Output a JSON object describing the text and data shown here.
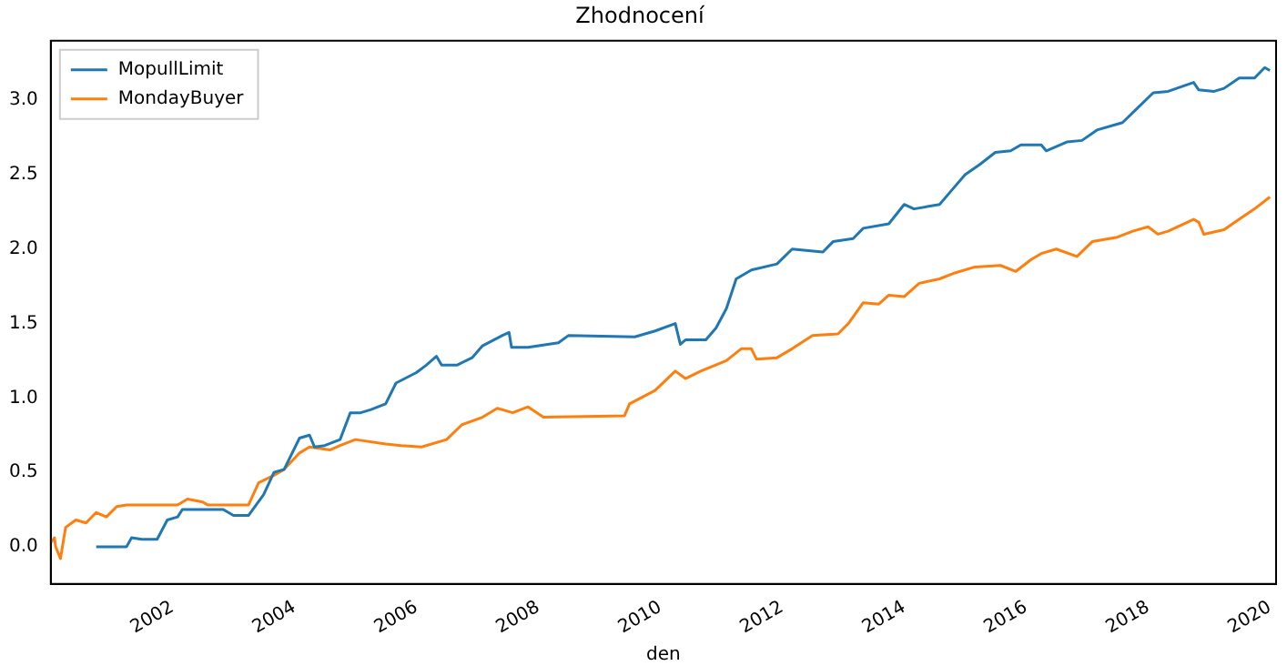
{
  "chart_data": {
    "type": "line",
    "title": "Zhodnocení",
    "xlabel": "den",
    "xlim": [
      "2000-01-03",
      "2020-02-07"
    ],
    "xticks": [
      {
        "value": "2002",
        "label": "2002"
      },
      {
        "value": "2004",
        "label": "2004"
      },
      {
        "value": "2006",
        "label": "2006"
      },
      {
        "value": "2008",
        "label": "2008"
      },
      {
        "value": "2010",
        "label": "2010"
      },
      {
        "value": "2012",
        "label": "2012"
      },
      {
        "value": "2014",
        "label": "2014"
      },
      {
        "value": "2016",
        "label": "2016"
      },
      {
        "value": "2018",
        "label": "2018"
      },
      {
        "value": "2020",
        "label": "2020"
      }
    ],
    "ylim": [
      -0.25,
      3.4
    ],
    "yticks": [
      {
        "value": 0,
        "label": "0.0"
      },
      {
        "value": 0.5,
        "label": "0.5"
      },
      {
        "value": 1,
        "label": "1.0"
      },
      {
        "value": 1.5,
        "label": "1.5"
      },
      {
        "value": 2,
        "label": "2.0"
      },
      {
        "value": 2.5,
        "label": "2.5"
      },
      {
        "value": 3,
        "label": "3.0"
      }
    ],
    "grid": false,
    "legend": "top left",
    "marker": "none",
    "line_style": "solid",
    "series": [
      {
        "name": "MopullLimit",
        "color": "#1f77b4",
        "x": [
          "2000-10",
          "2001-04",
          "2001-05",
          "2001-07",
          "2001-10",
          "2001-12",
          "2002-02",
          "2002-03",
          "2002-11",
          "2003-01",
          "2003-04",
          "2003-07",
          "2003-09",
          "2003-11",
          "2004-02",
          "2004-04",
          "2004-05",
          "2004-07",
          "2004-10",
          "2004-12",
          "2005-02",
          "2005-04",
          "2005-07",
          "2005-09",
          "2006-01",
          "2006-03",
          "2006-05",
          "2006-06",
          "2006-09",
          "2006-12",
          "2007-02",
          "2007-06",
          "2007-07-10",
          "2007-07-25",
          "2007-11",
          "2008-05",
          "2008-07",
          "2009-08",
          "2009-12",
          "2010-04",
          "2010-05",
          "2010-06",
          "2010-10",
          "2010-12",
          "2011-02",
          "2011-04",
          "2011-07",
          "2011-12",
          "2012-03",
          "2012-09",
          "2012-11",
          "2013-03",
          "2013-05",
          "2013-10",
          "2014-01",
          "2014-03",
          "2014-08",
          "2014-10",
          "2015-01",
          "2015-04",
          "2015-07",
          "2015-10",
          "2015-12",
          "2016-04",
          "2016-05",
          "2016-09",
          "2016-12",
          "2017-03",
          "2017-08",
          "2017-11",
          "2018-02",
          "2018-05",
          "2018-10",
          "2018-11",
          "2019-02",
          "2019-04",
          "2019-07",
          "2019-10",
          "2019-12",
          "2020-01"
        ],
        "values": [
          0,
          0,
          0.06,
          0.05,
          0.05,
          0.18,
          0.2,
          0.25,
          0.25,
          0.21,
          0.21,
          0.35,
          0.5,
          0.52,
          0.73,
          0.75,
          0.67,
          0.68,
          0.72,
          0.9,
          0.9,
          0.92,
          0.96,
          1.1,
          1.17,
          1.22,
          1.28,
          1.22,
          1.22,
          1.27,
          1.35,
          1.42,
          1.44,
          1.34,
          1.34,
          1.37,
          1.42,
          1.41,
          1.45,
          1.5,
          1.36,
          1.39,
          1.39,
          1.47,
          1.6,
          1.8,
          1.86,
          1.9,
          2.0,
          1.98,
          2.05,
          2.07,
          2.14,
          2.17,
          2.3,
          2.27,
          2.3,
          2.38,
          2.5,
          2.57,
          2.65,
          2.66,
          2.7,
          2.7,
          2.66,
          2.72,
          2.73,
          2.8,
          2.85,
          2.95,
          3.05,
          3.06,
          3.12,
          3.07,
          3.06,
          3.08,
          3.15,
          3.15,
          3.22,
          3.2
        ]
      },
      {
        "name": "MondayBuyer",
        "color": "#ff7f0e",
        "x": [
          "2000-01-05",
          "2000-01-25",
          "2000-02",
          "2000-03",
          "2000-03-20",
          "2000-04",
          "2000-06",
          "2000-08",
          "2000-10",
          "2000-12",
          "2001-02",
          "2001-04",
          "2002-02",
          "2002-04",
          "2002-07",
          "2002-08",
          "2003-04",
          "2003-06",
          "2003-09",
          "2003-11",
          "2004-02",
          "2004-04",
          "2004-08",
          "2004-10",
          "2005-01",
          "2005-07",
          "2005-10",
          "2006-02",
          "2006-07",
          "2006-10",
          "2007-02",
          "2007-05",
          "2007-08",
          "2007-11",
          "2008-02",
          "2009-06",
          "2009-07",
          "2009-12",
          "2010-04",
          "2010-06",
          "2010-09",
          "2011-02",
          "2011-05",
          "2011-07",
          "2011-08",
          "2011-12",
          "2012-03",
          "2012-07",
          "2012-12",
          "2013-02",
          "2013-05",
          "2013-08",
          "2013-10",
          "2014-01",
          "2014-04",
          "2014-08",
          "2014-11",
          "2015-03",
          "2015-08",
          "2015-11",
          "2016-02",
          "2016-04",
          "2016-07",
          "2016-11",
          "2017-02",
          "2017-07",
          "2017-10",
          "2018-01",
          "2018-03",
          "2018-05",
          "2018-10",
          "2018-11",
          "2018-12",
          "2019-04",
          "2019-07",
          "2019-10",
          "2020-01"
        ],
        "values": [
          0.03,
          0.06,
          0.0,
          -0.08,
          0.05,
          0.13,
          0.18,
          0.16,
          0.23,
          0.2,
          0.27,
          0.28,
          0.28,
          0.32,
          0.3,
          0.28,
          0.28,
          0.43,
          0.48,
          0.52,
          0.63,
          0.67,
          0.65,
          0.68,
          0.72,
          0.69,
          0.68,
          0.67,
          0.72,
          0.82,
          0.87,
          0.93,
          0.9,
          0.94,
          0.87,
          0.88,
          0.96,
          1.05,
          1.18,
          1.13,
          1.18,
          1.25,
          1.33,
          1.33,
          1.26,
          1.27,
          1.33,
          1.42,
          1.43,
          1.5,
          1.64,
          1.63,
          1.69,
          1.68,
          1.77,
          1.8,
          1.84,
          1.88,
          1.89,
          1.85,
          1.93,
          1.97,
          2.0,
          1.95,
          2.05,
          2.08,
          2.12,
          2.15,
          2.1,
          2.12,
          2.2,
          2.18,
          2.1,
          2.13,
          2.2,
          2.27,
          2.35
        ]
      }
    ]
  }
}
